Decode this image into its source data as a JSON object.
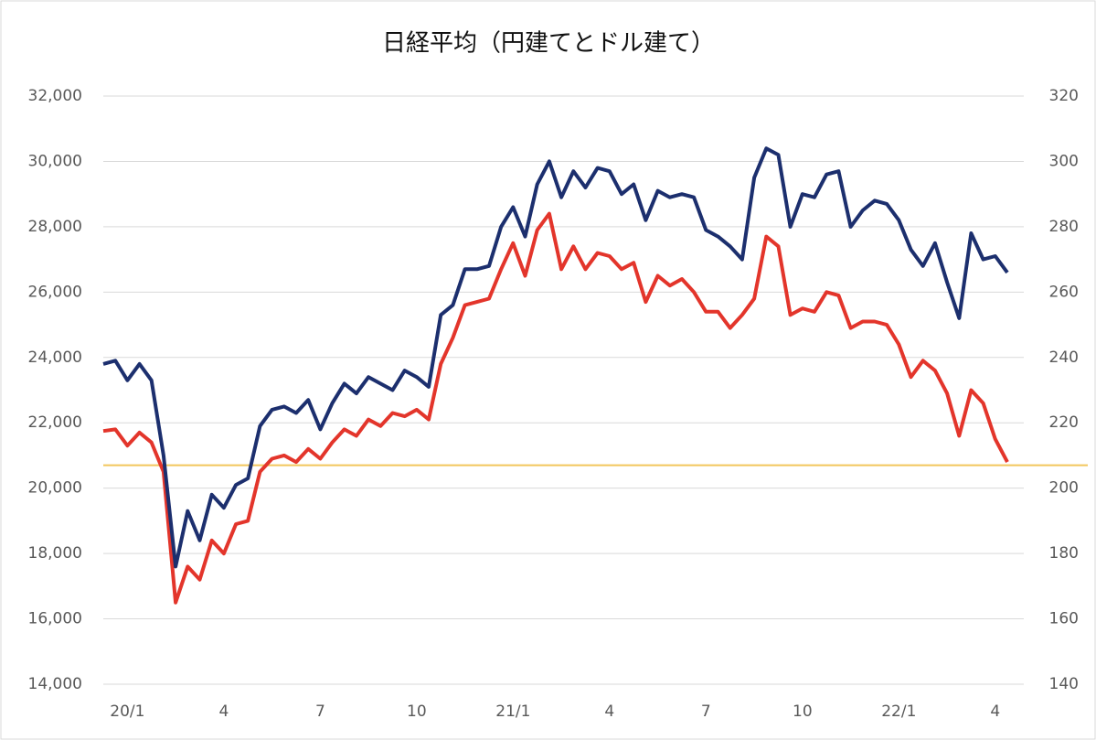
{
  "chart_data": {
    "type": "line",
    "title": "日経平均（円建てとドル建て）",
    "categories": [
      null,
      null,
      "20/1",
      null,
      null,
      null,
      null,
      null,
      null,
      null,
      "4",
      null,
      null,
      null,
      null,
      null,
      null,
      null,
      "7",
      null,
      null,
      null,
      null,
      null,
      null,
      null,
      "10",
      null,
      null,
      null,
      null,
      null,
      null,
      null,
      "21/1",
      null,
      null,
      null,
      null,
      null,
      null,
      null,
      "4",
      null,
      null,
      null,
      null,
      null,
      null,
      null,
      "7",
      null,
      null,
      null,
      null,
      null,
      null,
      null,
      "10",
      null,
      null,
      null,
      null,
      null,
      null,
      null,
      "22/1",
      null,
      null,
      null,
      null,
      null,
      null,
      null,
      "4",
      null
    ],
    "series": [
      {
        "color": "#1c2f6e",
        "values": [
          23800,
          23900,
          23300,
          23800,
          23300,
          21000,
          17600,
          19300,
          18400,
          19800,
          19400,
          20100,
          20300,
          21900,
          22400,
          22500,
          22300,
          22700,
          21800,
          22600,
          23200,
          22900,
          23400,
          23200,
          23000,
          23600,
          23400,
          23100,
          25300,
          25600,
          26700,
          26700,
          26800,
          28000,
          28600,
          27700,
          29300,
          30000,
          28900,
          29700,
          29200,
          29800,
          29700,
          29000,
          29300,
          28200,
          29100,
          28900,
          29000,
          28900,
          27900,
          27700,
          27400,
          27000,
          29500,
          30400,
          30200,
          28000,
          29000,
          28900,
          29600,
          29700,
          28000,
          28500,
          28800,
          28700,
          28200,
          27300,
          26800,
          27500,
          26300,
          25200,
          27800,
          27000,
          27100,
          26600
        ]
      },
      {
        "color": "#e3352b",
        "axis": "y2",
        "values": [
          217.5,
          218,
          213,
          217,
          214,
          205,
          165,
          176,
          172,
          184,
          180,
          189,
          190,
          205,
          209,
          210,
          208,
          212,
          209,
          214,
          218,
          216,
          221,
          219,
          223,
          222,
          224,
          221,
          238,
          246,
          256,
          257,
          258,
          267,
          275,
          265,
          279,
          284,
          267,
          274,
          267,
          272,
          271,
          267,
          269,
          257,
          265,
          262,
          264,
          260,
          254,
          254,
          249,
          253,
          258,
          277,
          274,
          253,
          255,
          254,
          260,
          259,
          249,
          251,
          251,
          250,
          244,
          234,
          239,
          236,
          229,
          216,
          230,
          226,
          215,
          208
        ]
      }
    ],
    "reference_line": {
      "value": 20700,
      "color": "#f2c75c"
    },
    "ylim": [
      14000,
      32000
    ],
    "yticks": [
      {
        "value": 14000,
        "label": "14,000"
      },
      {
        "value": 16000,
        "label": "16,000"
      },
      {
        "value": 18000,
        "label": "18,000"
      },
      {
        "value": 20000,
        "label": "20,000"
      },
      {
        "value": 22000,
        "label": "22,000"
      },
      {
        "value": 24000,
        "label": "24,000"
      },
      {
        "value": 26000,
        "label": "26,000"
      },
      {
        "value": 28000,
        "label": "28,000"
      },
      {
        "value": 30000,
        "label": "30,000"
      },
      {
        "value": 32000,
        "label": "32,000"
      }
    ],
    "y2lim": [
      140,
      320
    ],
    "y2ticks": [
      140,
      160,
      180,
      200,
      220,
      240,
      260,
      280,
      300,
      320
    ],
    "grid": true
  }
}
